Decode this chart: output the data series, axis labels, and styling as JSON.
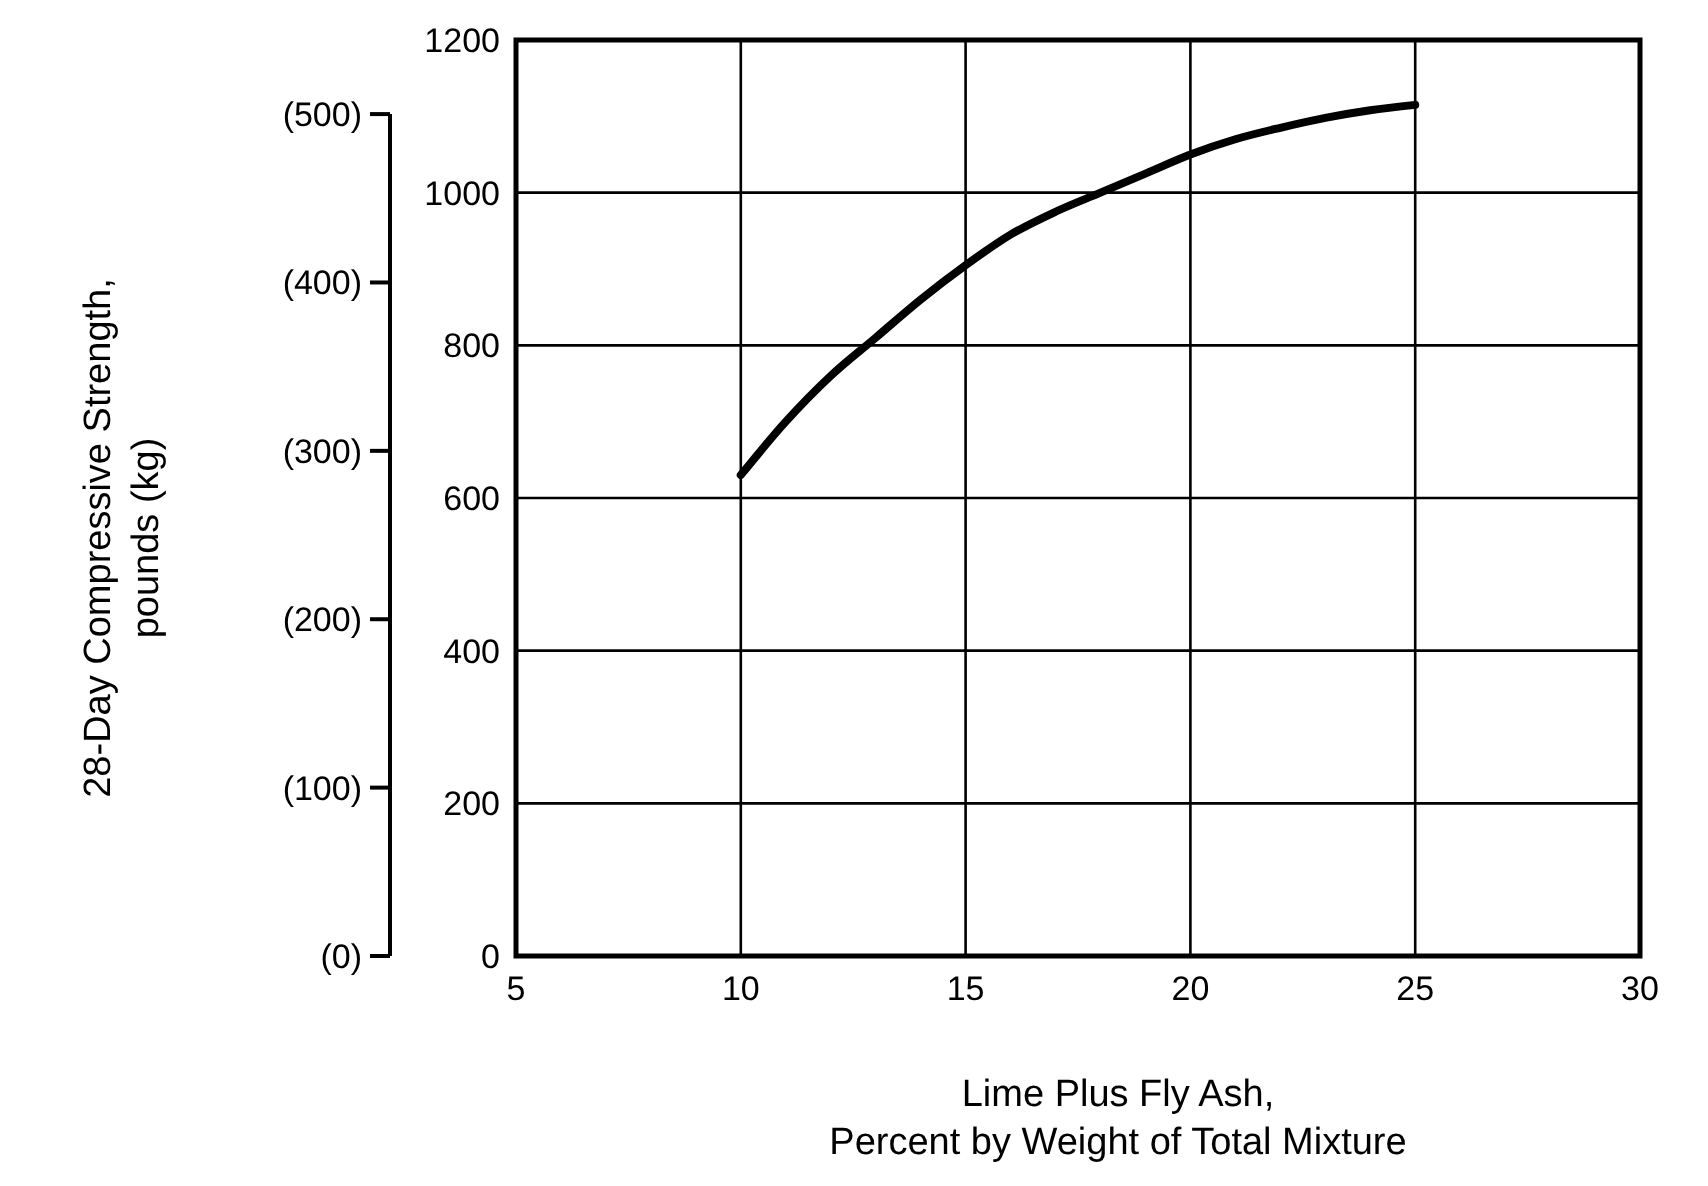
{
  "chart_data": {
    "type": "line",
    "xlabel": "Lime Plus Fly Ash,\nPercent by Weight of Total Mixture",
    "y2label": "28-Day Compressive Strength,\npounds (kg)",
    "x": [
      10,
      11,
      12,
      13,
      14,
      15,
      16,
      17,
      18,
      19,
      20,
      21,
      22,
      23,
      24,
      25
    ],
    "series": [
      {
        "color": "#000000",
        "values": [
          630,
          700,
          760,
          810,
          860,
          905,
          945,
          975,
          1000,
          1025,
          1050,
          1070,
          1085,
          1098,
          1108,
          1115
        ]
      }
    ],
    "xlim": [
      5,
      30
    ],
    "xticks": [
      5,
      10,
      15,
      20,
      25,
      30
    ],
    "ylim": [
      0,
      1200
    ],
    "yticks": [
      0,
      200,
      400,
      600,
      800,
      1000,
      1200
    ],
    "y2lim": [
      0,
      544
    ],
    "y2ticks": [
      {
        "value": 0,
        "label": "(0)"
      },
      {
        "value": 100,
        "label": "(100)"
      },
      {
        "value": 200,
        "label": "(200)"
      },
      {
        "value": 300,
        "label": "(300)"
      },
      {
        "value": 400,
        "label": "(400)"
      },
      {
        "value": 500,
        "label": "(500)"
      }
    ],
    "grid": true,
    "marker": "none",
    "line_style": "solid"
  }
}
